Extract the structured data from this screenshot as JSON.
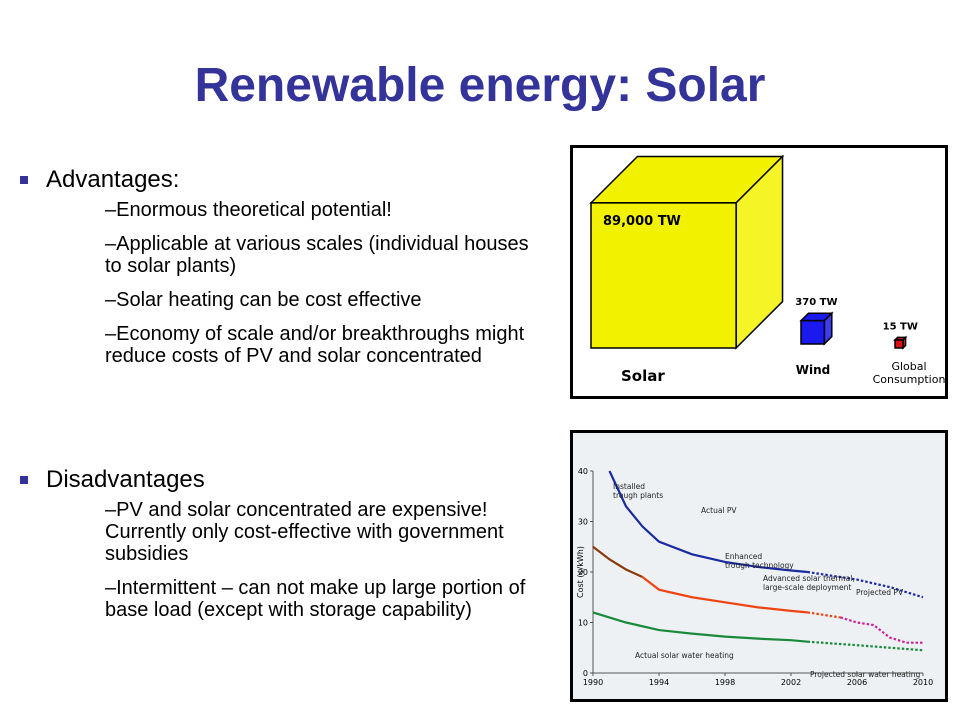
{
  "title": "Renewable energy: Solar",
  "advantages": {
    "heading": "Advantages:",
    "items": [
      "Enormous theoretical potential!",
      "Applicable at various scales (individual houses to solar plants)",
      "Solar heating can be cost effective",
      "Economy of scale and/or breakthroughs might reduce costs of PV and solar concentrated"
    ]
  },
  "disadvantages": {
    "heading": "Disadvantages",
    "items": [
      "PV and solar concentrated are expensive! Currently only cost-effective with government subsidies",
      "Intermittent – can not make up large portion of base load (except with storage capability)"
    ]
  },
  "cube_figure": {
    "categories": [
      "Solar",
      "Wind",
      "Global Consumption"
    ],
    "values": [
      89000,
      370,
      15
    ],
    "value_labels": [
      "89,000 TW",
      "370 TW",
      "15 TW"
    ],
    "colors": [
      "#f2f200",
      "#1a1aee",
      "#dd1111"
    ]
  },
  "chart_data": {
    "type": "line",
    "y_label": "Cost (¢/kWh)",
    "xlim": [
      1990,
      2010
    ],
    "xticks": [
      1990,
      1994,
      1998,
      2002,
      2006,
      2010
    ],
    "ylim": [
      0,
      40
    ],
    "yticks": [
      0,
      10,
      20,
      30,
      40
    ],
    "series": [
      {
        "color": "#1a2aa0",
        "dashed": false,
        "x": [
          1991,
          1992,
          1993,
          1994,
          1996,
          1998,
          2000,
          2002,
          2003
        ],
        "values": [
          40,
          33,
          29,
          26,
          23.5,
          22,
          21,
          20.3,
          20
        ]
      },
      {
        "color": "#1a2aa0",
        "dashed": true,
        "x": [
          2003,
          2006,
          2008,
          2010
        ],
        "values": [
          20,
          18.5,
          17,
          15
        ]
      },
      {
        "color": "#8b3a0a",
        "dashed": false,
        "x": [
          1990,
          1991,
          1992,
          1993
        ],
        "values": [
          25,
          22.5,
          20.5,
          19
        ]
      },
      {
        "color": "#ee4411",
        "dashed": false,
        "x": [
          1993,
          1994,
          1996,
          1998,
          2000,
          2002,
          2003
        ],
        "values": [
          19,
          16.5,
          15,
          14,
          13,
          12.3,
          12
        ]
      },
      {
        "color": "#ee4411",
        "dashed": true,
        "x": [
          2003,
          2005
        ],
        "values": [
          12,
          11
        ]
      },
      {
        "color": "#cc2299",
        "dashed": true,
        "x": [
          2005,
          2006,
          2007,
          2008,
          2009,
          2010
        ],
        "values": [
          11,
          10,
          9.5,
          7,
          6,
          6
        ]
      },
      {
        "color": "#1a8a3a",
        "dashed": false,
        "x": [
          1990,
          1992,
          1994,
          1996,
          1998,
          2000,
          2002,
          2003
        ],
        "values": [
          12,
          10,
          8.5,
          7.8,
          7.2,
          6.8,
          6.5,
          6.2
        ]
      },
      {
        "color": "#1a8a3a",
        "dashed": true,
        "x": [
          2003,
          2006,
          2010
        ],
        "values": [
          6.2,
          5.5,
          4.5
        ]
      }
    ],
    "annotations": [
      "Installed trough plants",
      "Actual PV",
      "Projected PV",
      "Enhanced trough technology",
      "Advanced solar thermal, large-scale deployment",
      "Actual solar water heating",
      "Projected solar water heating"
    ]
  }
}
